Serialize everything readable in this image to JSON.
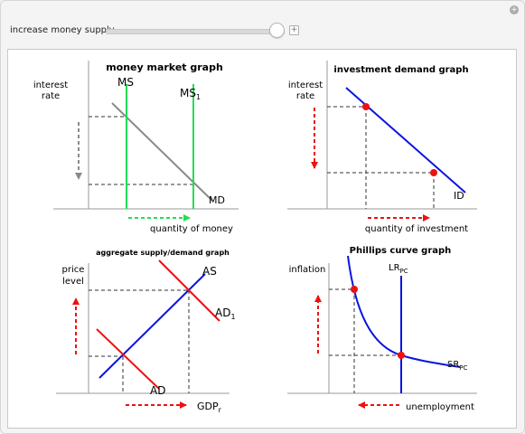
{
  "controls": {
    "slider_label": "increase money supply",
    "slider_value": 0.97,
    "plus_icon": "+",
    "corner_icon": "+"
  },
  "colors": {
    "green": "#22dd55",
    "blue": "#0a14e0",
    "red": "#ee1111",
    "gray": "#8a8a8a"
  },
  "charts": {
    "money": {
      "title": "money market graph",
      "ylabel_1": "interest",
      "ylabel_2": "rate",
      "xlabel": "quantity of money",
      "ms_label": "MS",
      "ms1_main": "MS",
      "ms1_sub": "1",
      "md_label": "MD"
    },
    "investment": {
      "title": "investment demand graph",
      "ylabel_1": "interest",
      "ylabel_2": "rate",
      "xlabel": "quantity of investment",
      "id_label": "ID"
    },
    "asad": {
      "title": "aggregate supply/demand graph",
      "ylabel_1": "price",
      "ylabel_2": "level",
      "xlabel_main": "GDP",
      "xlabel_sub": "r",
      "as_label": "AS",
      "ad1_main": "AD",
      "ad1_sub": "1",
      "ad_label": "AD"
    },
    "phillips": {
      "title": "Phillips curve graph",
      "ylabel": "inflation",
      "xlabel": "unemployment",
      "lrpc_main": "LR",
      "lrpc_sub": "PC",
      "srpc_main": "SR",
      "srpc_sub": "PC"
    }
  }
}
